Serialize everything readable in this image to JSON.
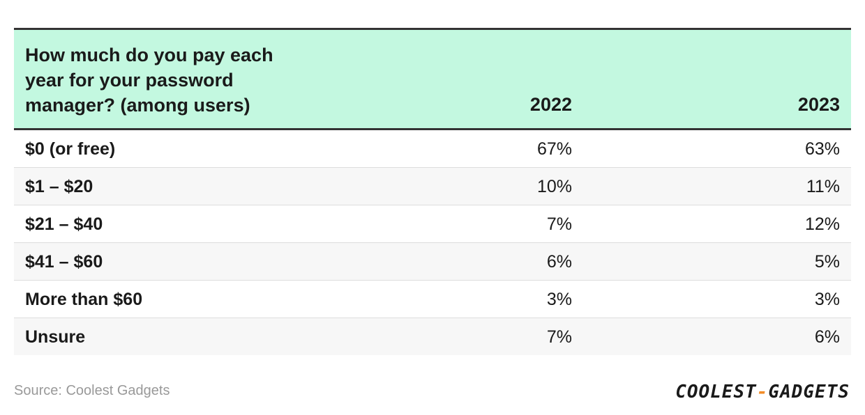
{
  "table": {
    "header": [
      "How much do you pay each year for your password manager? (among users)",
      "2022",
      "2023"
    ],
    "rows": [
      [
        "$0 (or free)",
        "67%",
        "63%"
      ],
      [
        "$1 – $20",
        "10%",
        "11%"
      ],
      [
        "$21 – $40",
        "7%",
        "12%"
      ],
      [
        "$41 – $60",
        "6%",
        "5%"
      ],
      [
        "More than $60",
        "3%",
        "3%"
      ],
      [
        "Unsure",
        "7%",
        "6%"
      ]
    ]
  },
  "footer": {
    "source": "Source: Coolest Gadgets",
    "logo": [
      "COOLEST",
      "-",
      "GADGETS"
    ]
  }
}
